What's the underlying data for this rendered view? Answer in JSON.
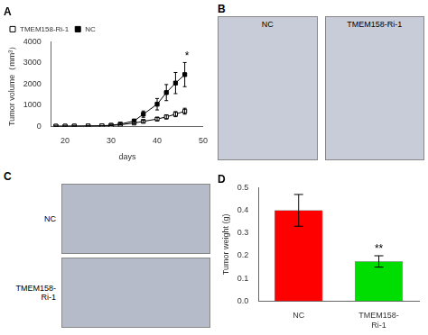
{
  "chart_data": [
    {
      "type": "line",
      "title": "A",
      "x": [
        18,
        20,
        22,
        25,
        28,
        30,
        32,
        35,
        37,
        40,
        42,
        44,
        46
      ],
      "series": [
        {
          "name": "TMEM158-Ri-1",
          "color": "#000000",
          "marker": "square-open",
          "line_style": "solid",
          "values": [
            8,
            10,
            12,
            18,
            28,
            45,
            80,
            160,
            240,
            350,
            450,
            580,
            720
          ],
          "errors": [
            3,
            3,
            5,
            6,
            8,
            12,
            20,
            40,
            55,
            75,
            95,
            120,
            140
          ]
        },
        {
          "name": "NC",
          "color": "#000000",
          "marker": "square",
          "line_style": "solid",
          "values": [
            8,
            10,
            15,
            20,
            30,
            55,
            110,
            260,
            580,
            1050,
            1600,
            2050,
            2450
          ],
          "errors": [
            3,
            4,
            5,
            8,
            10,
            15,
            30,
            70,
            150,
            270,
            380,
            500,
            570
          ]
        }
      ],
      "xlabel": "days",
      "ylabel": "Tumor volume（mm³）",
      "xlim": [
        17,
        50
      ],
      "xticks": [
        20,
        30,
        40,
        50
      ],
      "ylim": [
        0,
        4000
      ],
      "yticks": [
        0,
        1000,
        2000,
        3000,
        4000
      ],
      "grid": false,
      "legend": "upper left",
      "annotations": [
        {
          "text": "*",
          "x": 46.5,
          "y": 3050
        }
      ]
    },
    {
      "type": "image",
      "title": "B",
      "annotations": [
        {
          "text": "NC"
        },
        {
          "text": "TMEM158-Ri-1"
        }
      ]
    },
    {
      "type": "image",
      "title": "C",
      "annotations": [
        {
          "text": "NC"
        },
        {
          "text": "TMEM158-\nRi-1"
        }
      ]
    },
    {
      "type": "bar",
      "title": "D",
      "categories": [
        "NC",
        "TMEM158-\nRi-1"
      ],
      "values": [
        0.4,
        0.175
      ],
      "errors": [
        0.07,
        0.025
      ],
      "colors": [
        "#ff0000",
        "#00dd00"
      ],
      "ylabel": "Tumor weight (g)",
      "ylim": [
        0,
        0.5
      ],
      "yticks": [
        {
          "value": 0,
          "label": "0.0"
        },
        0.1,
        0.2,
        0.3,
        0.4,
        0.5
      ],
      "grid": false,
      "annotations": [
        {
          "text": "**",
          "x": "TMEM158-\nRi-1",
          "y": 0.205
        }
      ]
    }
  ]
}
